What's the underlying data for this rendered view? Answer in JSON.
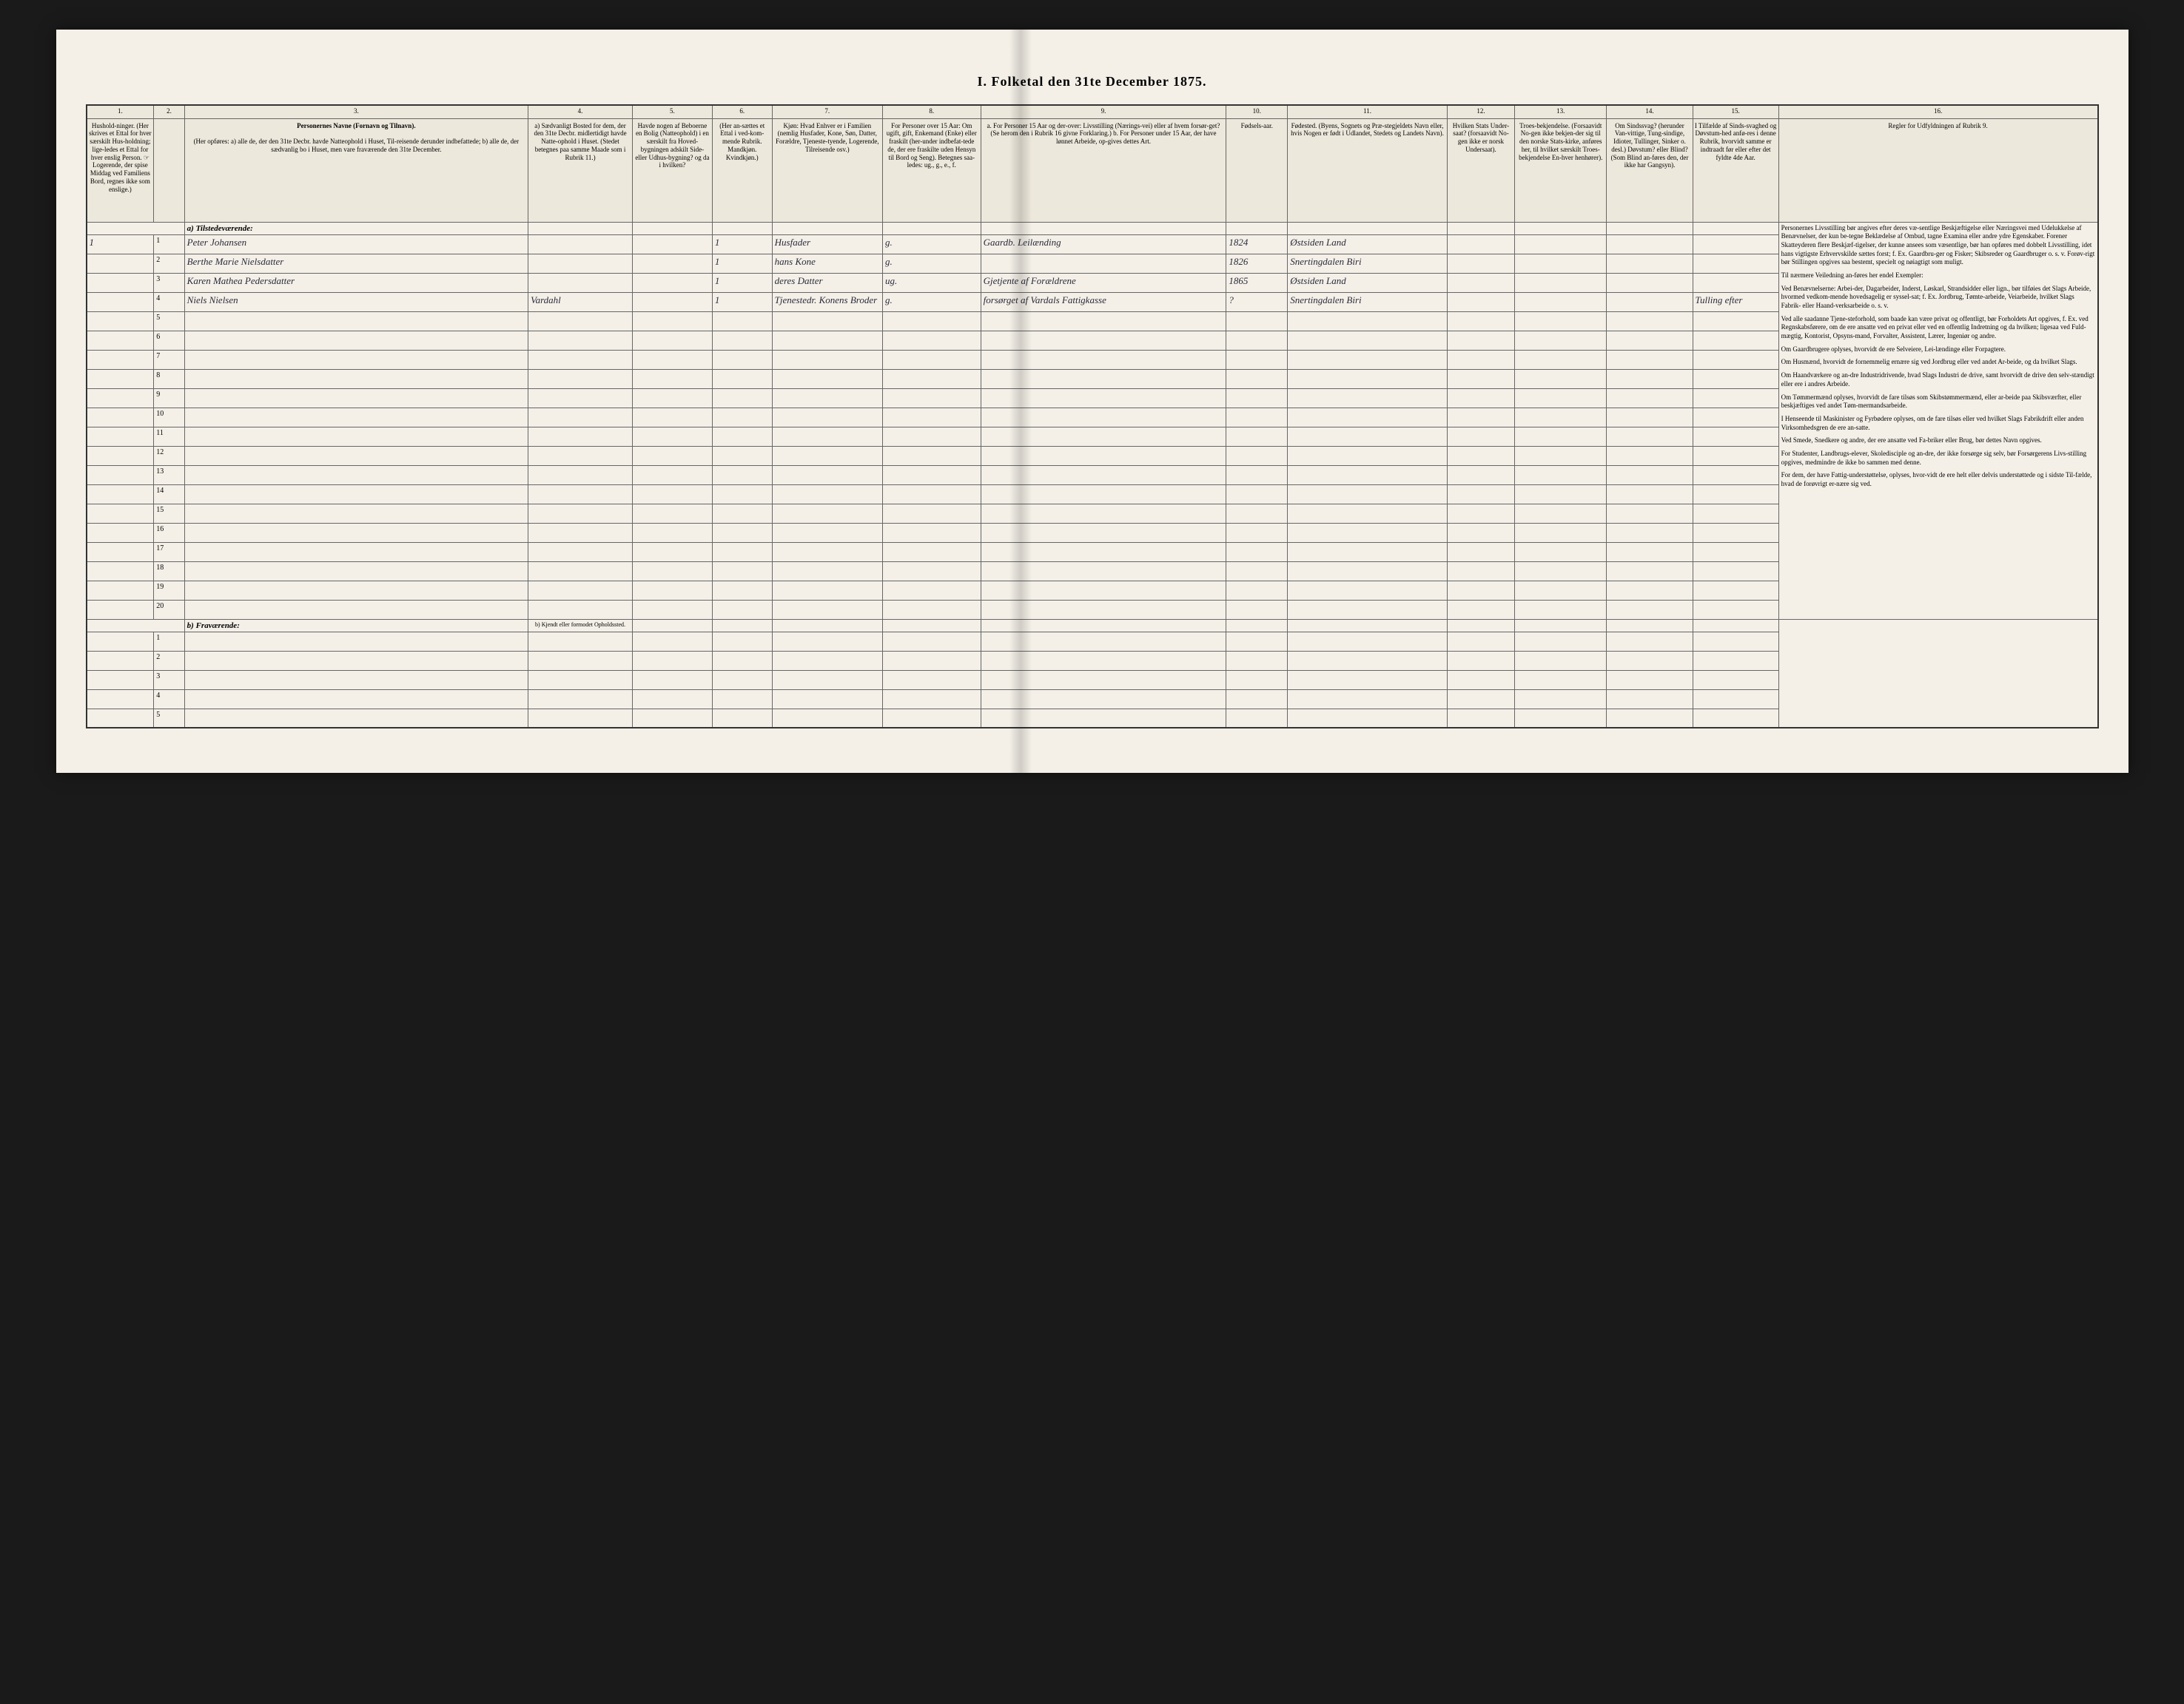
{
  "title": "I. Folketal den 31te December 1875.",
  "column_numbers": [
    "1.",
    "2.",
    "3.",
    "4.",
    "5.",
    "6.",
    "7.",
    "8.",
    "9.",
    "10.",
    "11.",
    "12.",
    "13.",
    "14.",
    "15.",
    "16."
  ],
  "headers": {
    "col1": "Hushold-ninger. (Her skrives et Ettal for hver særskilt Hus-holdning; lige-ledes et Ettal for hver enslig Person. ☞ Logerende, der spise Middag ved Familiens Bord, regnes ikke som enslige.)",
    "col2": "",
    "col3_title": "Personernes Navne (Fornavn og Tilnavn).",
    "col3_sub": "(Her opføres: a) alle de, der den 31te Decbr. havde Natteophold i Huset, Til-reisende derunder indbefattede; b) alle de, der sædvanlig bo i Huset, men vare fraværende den 31te December.",
    "col4": "a) Sædvanligt Bosted for dem, der den 31te Decbr. midlertidigt havde Natte-ophold i Huset. (Stedet betegnes paa samme Maade som i Rubrik 11.)",
    "col5": "Havde nogen af Beboerne en Bolig (Natteophold) i en særskilt fra Hoved-bygningen adskilt Side- eller Udhus-bygning? og da i hvilken?",
    "col6": "(Her an-sættes et Ettal i ved-kom-mende Rubrik. Mandkjøn. Kvindkjøn.)",
    "col7": "Kjøn: Hvad Enhver er i Familien (nemlig Husfader, Kone, Søn, Datter, Forældre, Tjeneste-tyende, Logerende, Tilreisende osv.)",
    "col8": "For Personer over 15 Aar: Om ugift, gift, Enkemand (Enke) eller fraskilt (her-under indbefat-tede de, der ere fraskilte uden Hensyn til Bord og Seng). Betegnes saa-ledes: ug., g., e., f.",
    "col9": "a. For Personer 15 Aar og der-over: Livsstilling (Nærings-vei) eller af hvem forsør-get? (Se herom den i Rubrik 16 givne Forklaring.) b. For Personer under 15 Aar, der have lønnet Arbeide, op-gives dettes Art.",
    "col10": "Fødsels-aar.",
    "col11": "Fødested. (Byens, Sognets og Præ-stegjeldets Navn eller, hvis Nogen er født i Udlandet, Stedets og Landets Navn).",
    "col12": "Hvilken Stats Under-saat? (forsaavidt No-gen ikke er norsk Undersaat).",
    "col13": "Troes-bekjendelse. (Forsaavidt No-gen ikke bekjen-der sig til den norske Stats-kirke, anføres her, til hvilket særskilt Troes-bekjendelse En-hver henhører).",
    "col14": "Om Sindssvag? (herunder Van-vittige, Tung-sindige, Idioter, Tullinger, Sinker o. desl.) Døvstum? eller Blind? (Som Blind an-føres den, der ikke har Gangsyn).",
    "col15": "I Tilfælde af Sinds-svaghed og Døvstum-hed anfø-res i denne Rubrik, hvorvidt samme er indtraadt før eller efter det fyldte 4de Aar.",
    "col16_title": "Regler for Udfyldningen af Rubrik 9."
  },
  "section_a": "a) Tilstedeværende:",
  "section_b": "b) Fraværende:",
  "section_b_col4": "b) Kjendt eller formodet Opholdssted.",
  "rows_a": [
    {
      "num": "1",
      "hh": "1",
      "name": "Peter Johansen",
      "col5": "",
      "col6": "1",
      "col7": "Husfader",
      "col8": "g.",
      "col9": "Gaardb. Leilænding",
      "col10": "1824",
      "col11": "Østsiden Land",
      "col15": ""
    },
    {
      "num": "2",
      "hh": "",
      "name": "Berthe Marie Nielsdatter",
      "col5": "",
      "col6": "1",
      "col7": "hans Kone",
      "col8": "g.",
      "col9": "",
      "col10": "1826",
      "col11": "Snertingdalen Biri",
      "col15": ""
    },
    {
      "num": "3",
      "hh": "",
      "name": "Karen Mathea Pedersdatter",
      "col5": "",
      "col6": "1",
      "col7": "deres Datter",
      "col8": "ug.",
      "col9": "Gjetjente af Forældrene",
      "col10": "1865",
      "col11": "Østsiden Land",
      "col15": ""
    },
    {
      "num": "4",
      "hh": "",
      "name": "Niels Nielsen",
      "col4": "Vardahl",
      "col5": "",
      "col6": "1",
      "col7": "Tjenestedr. Konens Broder",
      "col8": "g.",
      "col9": "forsørget af Vardals Fattigkasse",
      "col10": "?",
      "col11": "Snertingdalen Biri",
      "col15": "Tulling efter"
    },
    {
      "num": "5"
    },
    {
      "num": "6"
    },
    {
      "num": "7"
    },
    {
      "num": "8"
    },
    {
      "num": "9"
    },
    {
      "num": "10"
    },
    {
      "num": "11"
    },
    {
      "num": "12"
    },
    {
      "num": "13"
    },
    {
      "num": "14"
    },
    {
      "num": "15"
    },
    {
      "num": "16"
    },
    {
      "num": "17"
    },
    {
      "num": "18"
    },
    {
      "num": "19"
    },
    {
      "num": "20"
    }
  ],
  "rows_b": [
    {
      "num": "1"
    },
    {
      "num": "2"
    },
    {
      "num": "3"
    },
    {
      "num": "4"
    },
    {
      "num": "5"
    }
  ],
  "instructions": {
    "p1": "Personernes Livsstilling bør angives efter deres væ-sentlige Beskjæftigelse eller Næringsvei med Udelukkelse af Benævnelser, der kun be-tegne Beklædelse af Ombud, tagne Examina eller andre ydre Egenskaber. Forener Skatteyderen flere Beskjæf-tigelser, der kunne ansees som væsentlige, bør han opføres med dobbelt Livsstilling, idet hans vigtigste Erhvervskilde sættes forst; f. Ex. Gaardbru-ger og Fisker; Skibsreder og Gaardbruger o. s. v. Forøv-rigt bør Stillingen opgives saa bestemt, specielt og nøiagtigt som muligt.",
    "p2": "Til nærmere Veiledning an-føres her endel Exempler:",
    "p3": "Ved Benævnelserne: Arbei-der, Dagarbeider, Inderst, Løskarl, Strandsidder eller lign., bør tilføies det Slags Arbeide, hvormed vedkom-mende hovedsagelig er syssel-sat; f. Ex. Jordbrug, Tømte-arbeide, Veiarbeide, hvilket Slags Fabrik- eller Haand-verksarbeide o. s. v.",
    "p4": "Ved alle saadanne Tjene-steforhold, som baade kan være privat og offentligt, bør Forholdets Art opgives, f. Ex. ved Regnskabsførere, om de ere ansatte ved en privat eller ved en offentlig Indretning og da hvilken; ligesaa ved Fuld-mægtig, Kontorist, Opsyns-mand, Forvalter, Assistent, Lærer, Ingeniør og andre.",
    "p5": "Om Gaardbrugere oplyses, hvorvidt de ere Selveiere, Lei-lændinge eller Forpagtere.",
    "p6": "Om Husmænd, hvorvidt de fornemmelig ernære sig ved Jordbrug eller ved andet Ar-beide, og da hvilket Slags.",
    "p7": "Om Haandværkere og an-dre Industridrivende, hvad Slags Industri de drive, samt hvorvidt de drive den selv-stændigt eller ere i andres Arbeide.",
    "p8": "Om Tømmermænd oplyses, hvorvidt de fare tilsøs som Skibstømmermænd, eller ar-beide paa Skibsværfter, eller beskjæftiges ved andet Tøm-mermandsarbeide.",
    "p9": "I Henseende til Maskinister og Fyrbødere oplyses, om de fare tilsøs eller ved hvilket Slags Fabrikdrift eller anden Virksomhedsgren de ere an-satte.",
    "p10": "Ved Smede, Snedkere og andre, der ere ansatte ved Fa-briker eller Brug, bør dettes Navn opgives.",
    "p11": "For Studenter, Landbrugs-elever, Skoledisciple og an-dre, der ikke forsørge sig selv, bør Forsørgerens Livs-stilling opgives, medmindre de ikke bo sammen med denne.",
    "p12": "For dem, der have Fattig-understøttelse, oplyses, hvor-vidt de ere helt eller delvis understøttede og i sidste Til-fælde, hvad de forøvrigt er-nære sig ved."
  }
}
